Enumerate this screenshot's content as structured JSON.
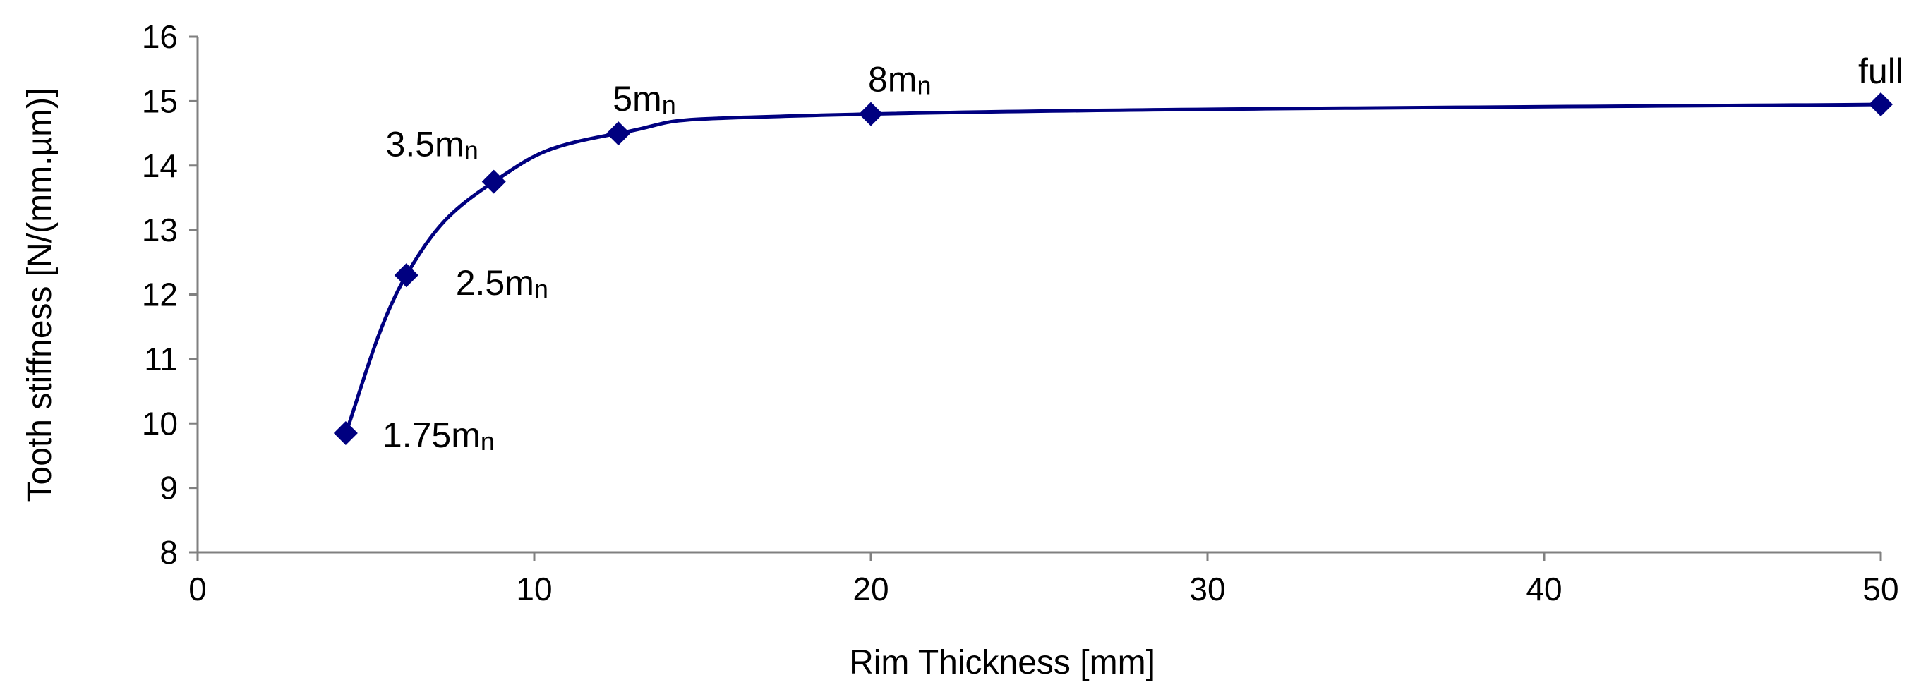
{
  "chart_data": {
    "type": "line",
    "title": "",
    "xlabel": "Rim Thickness [mm]",
    "ylabel": "Tooth stiffness [N/(mm.µm)]",
    "xlim": [
      0,
      50
    ],
    "ylim": [
      8,
      16
    ],
    "x_ticks": [
      "0",
      "10",
      "20",
      "30",
      "40",
      "50"
    ],
    "y_ticks": [
      "8",
      "9",
      "10",
      "11",
      "12",
      "13",
      "14",
      "15",
      "16"
    ],
    "grid": false,
    "legend": "none",
    "marker": "diamond",
    "line_color": "#000080",
    "smooth": true,
    "series": [
      {
        "points": [
          {
            "x": 4.4,
            "y": 9.85,
            "label": "1.75m",
            "label_sub": "n"
          },
          {
            "x": 6.2,
            "y": 12.3,
            "label": "2.5m",
            "label_sub": "n"
          },
          {
            "x": 8.8,
            "y": 13.75,
            "label": "3.5m",
            "label_sub": "n"
          },
          {
            "x": 12.5,
            "y": 14.5,
            "label": "5m",
            "label_sub": "n"
          },
          {
            "x": 20,
            "y": 14.8,
            "label": "8m",
            "label_sub": "n"
          },
          {
            "x": 50,
            "y": 14.95,
            "label": "full",
            "label_sub": ""
          }
        ]
      }
    ]
  }
}
